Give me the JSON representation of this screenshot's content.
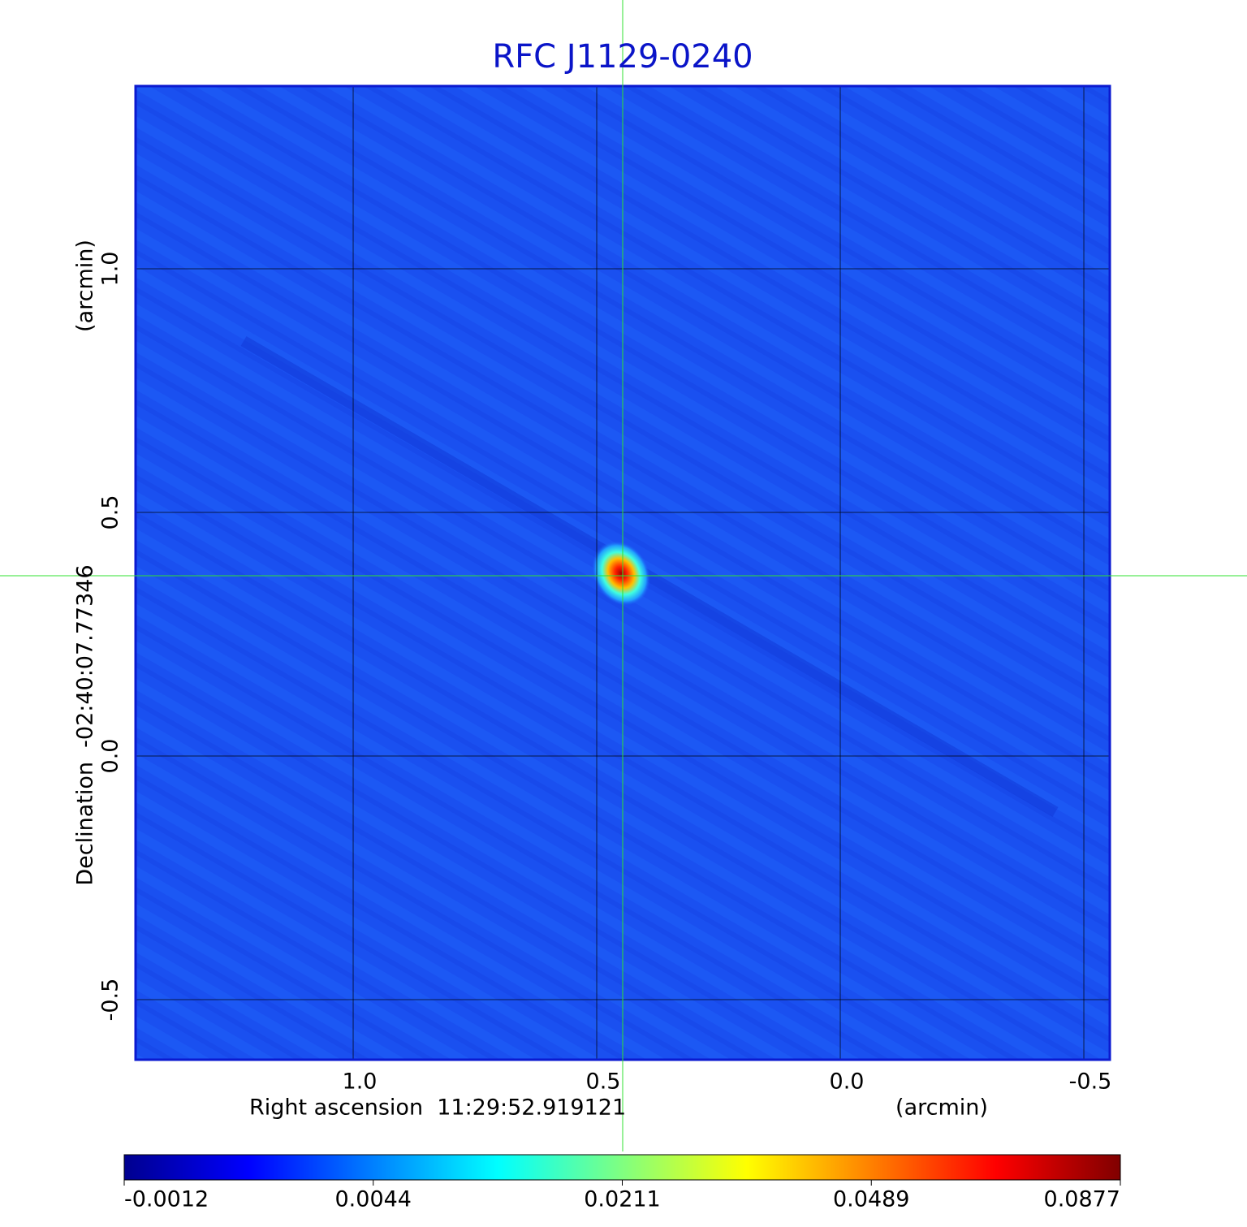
{
  "chart_data": {
    "type": "image",
    "title": "RFC J1129-0240",
    "x_label": "Right ascension  11:29:52.919121",
    "x_unit": "(arcmin)",
    "y_label": "Declination  -02:40:07.77346",
    "y_unit": "(arcmin)",
    "xlim": [
      1.4467,
      -0.5533
    ],
    "ylim": [
      -0.6233,
      1.375
    ],
    "xticks": [
      {
        "value": 1,
        "label": "1.0"
      },
      0.5,
      {
        "value": 0,
        "label": "0.0"
      },
      -0.5
    ],
    "yticks": [
      -0.5,
      {
        "value": 0,
        "label": "0.0"
      },
      0.5,
      {
        "value": 1,
        "label": "1.0"
      }
    ],
    "grid": true,
    "colorbar": {
      "ticks": [
        -0.0012,
        0.0044,
        0.0211,
        0.0489,
        0.0877
      ],
      "colors": [
        "#00008f",
        "#0000ff",
        "#0080ff",
        "#00ffff",
        "#80ff80",
        "#ffff00",
        "#ff8000",
        "#ff0000",
        "#800000"
      ]
    }
  }
}
